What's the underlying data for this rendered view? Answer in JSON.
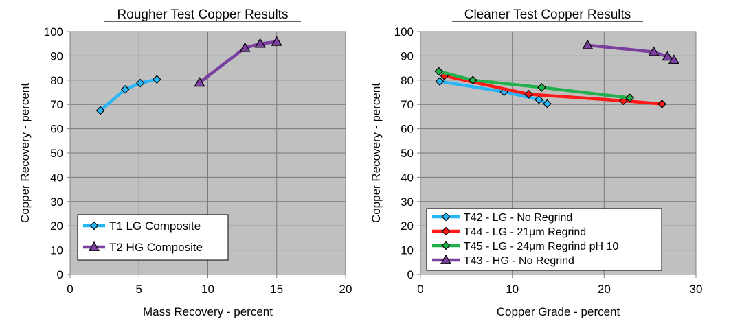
{
  "chart_data": [
    {
      "type": "line",
      "title": "Rougher Test Copper Results",
      "xlabel": "Mass Recovery - percent",
      "ylabel": "Copper Recovery - percent",
      "xlim": [
        0,
        20
      ],
      "ylim": [
        0,
        100
      ],
      "xticks": [
        0,
        5,
        10,
        15,
        20
      ],
      "yticks": [
        0,
        10,
        20,
        30,
        40,
        50,
        60,
        70,
        80,
        90,
        100
      ],
      "grid": true,
      "legend_position": "bottom-left",
      "series": [
        {
          "name": "T1 LG Composite",
          "color": "#29b6f6",
          "marker": "diamond",
          "x": [
            2.2,
            4.0,
            5.1,
            6.3
          ],
          "y": [
            67.5,
            76.2,
            78.8,
            80.3
          ]
        },
        {
          "name": "T2 HG Composite",
          "color": "#7b3fa0",
          "marker": "triangle",
          "x": [
            9.4,
            12.7,
            13.8,
            15.0
          ],
          "y": [
            79.0,
            93.3,
            95.0,
            95.8
          ]
        }
      ]
    },
    {
      "type": "line",
      "title": "Cleaner Test Copper Results",
      "xlabel": "Copper Grade - percent",
      "ylabel": "Copper Recovery - percent",
      "xlim": [
        0,
        30
      ],
      "ylim": [
        0,
        100
      ],
      "xticks": [
        0,
        10,
        20,
        30
      ],
      "yticks": [
        0,
        10,
        20,
        30,
        40,
        50,
        60,
        70,
        80,
        90,
        100
      ],
      "grid": true,
      "legend_position": "bottom-left",
      "series": [
        {
          "name": "T42 - LG - No Regrind",
          "color": "#29b6f6",
          "marker": "diamond",
          "x": [
            2.1,
            9.1,
            12.9,
            13.8
          ],
          "y": [
            79.5,
            75.2,
            72.0,
            70.3
          ]
        },
        {
          "name": "T44 - LG - 21µm Regrind",
          "color": "#ff1a1a",
          "marker": "diamond",
          "x": [
            2.6,
            11.8,
            22.1,
            26.3
          ],
          "y": [
            81.8,
            74.2,
            71.5,
            70.2
          ]
        },
        {
          "name": "T45 - LG - 24µm Regrind pH 10",
          "color": "#21b04b",
          "marker": "diamond",
          "x": [
            2.0,
            5.7,
            13.2,
            22.8
          ],
          "y": [
            83.6,
            80.0,
            77.0,
            72.7
          ]
        },
        {
          "name": "T43 - HG - No Regrind",
          "color": "#7b3fa0",
          "marker": "triangle",
          "x": [
            18.2,
            25.4,
            26.9,
            27.6
          ],
          "y": [
            94.4,
            91.6,
            89.7,
            88.3
          ]
        }
      ]
    }
  ]
}
